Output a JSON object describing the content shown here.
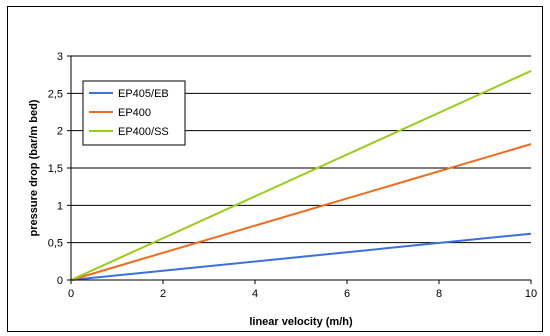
{
  "chart_data": {
    "type": "line",
    "title": "",
    "xlabel": "linear velocity (m/h)",
    "ylabel": "pressure drop (bar/m bed)",
    "xlim": [
      0,
      10
    ],
    "ylim": [
      0,
      3
    ],
    "x_ticks": [
      "0",
      "2",
      "4",
      "6",
      "8",
      "10"
    ],
    "y_ticks": [
      "0",
      "0,5",
      "1",
      "1,5",
      "2",
      "2,5",
      "3"
    ],
    "grid": "horizontal",
    "legend_position": "top-left",
    "series": [
      {
        "name": "EP405/EB",
        "color": "#3d6fe0",
        "x": [
          0,
          10
        ],
        "y": [
          0,
          0.62
        ]
      },
      {
        "name": "EP400",
        "color": "#f26b1d",
        "x": [
          0,
          10
        ],
        "y": [
          0,
          1.82
        ]
      },
      {
        "name": "EP400/SS",
        "color": "#9acd18",
        "x": [
          0,
          10
        ],
        "y": [
          0,
          2.8
        ]
      }
    ]
  }
}
